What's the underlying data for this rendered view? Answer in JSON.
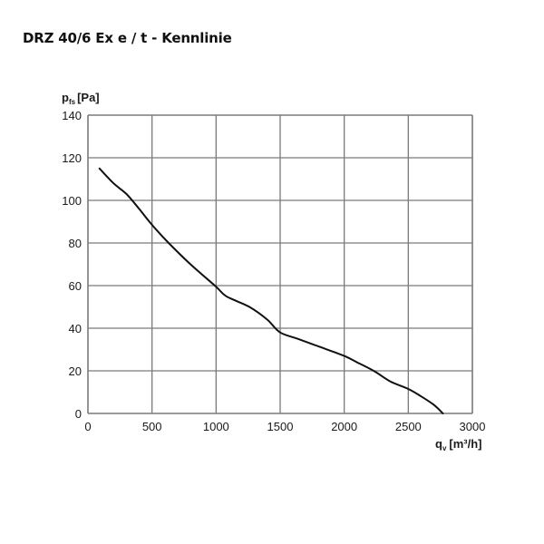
{
  "page": {
    "title": "DRZ 40/6 Ex e / t - Kennlinie"
  },
  "colors": {
    "grid": "#7a7a7a",
    "curve": "#111111",
    "text": "#1a1a1a",
    "background": "#ffffff"
  },
  "chart_data": {
    "type": "line",
    "title": "DRZ 40/6 Ex e / t - Kennlinie",
    "xlabel": "q_v [m³/h]",
    "ylabel": "p_fs [Pa]",
    "xlabel_main": "q",
    "xlabel_sub": "v",
    "xlabel_unit": "[m³/h]",
    "ylabel_main": "p",
    "ylabel_sub": "fs",
    "ylabel_unit": "[Pa]",
    "xlim": [
      0,
      3000
    ],
    "ylim": [
      0,
      140
    ],
    "xticks": [
      0,
      500,
      1000,
      1500,
      2000,
      2500,
      3000
    ],
    "yticks": [
      0,
      20,
      40,
      60,
      80,
      100,
      120,
      140
    ],
    "grid": true,
    "legend": null,
    "series": [
      {
        "name": "Kennlinie",
        "x": [
          90,
          200,
          300,
          400,
          500,
          630,
          800,
          1000,
          1080,
          1260,
          1400,
          1500,
          1640,
          1820,
          2000,
          2100,
          2230,
          2360,
          2500,
          2600,
          2700,
          2770
        ],
        "y": [
          115,
          108,
          103,
          96,
          88.5,
          80,
          70,
          59.5,
          55,
          50,
          44,
          38,
          35,
          31,
          27,
          24,
          20,
          15,
          11.5,
          8,
          4,
          0
        ]
      }
    ]
  }
}
